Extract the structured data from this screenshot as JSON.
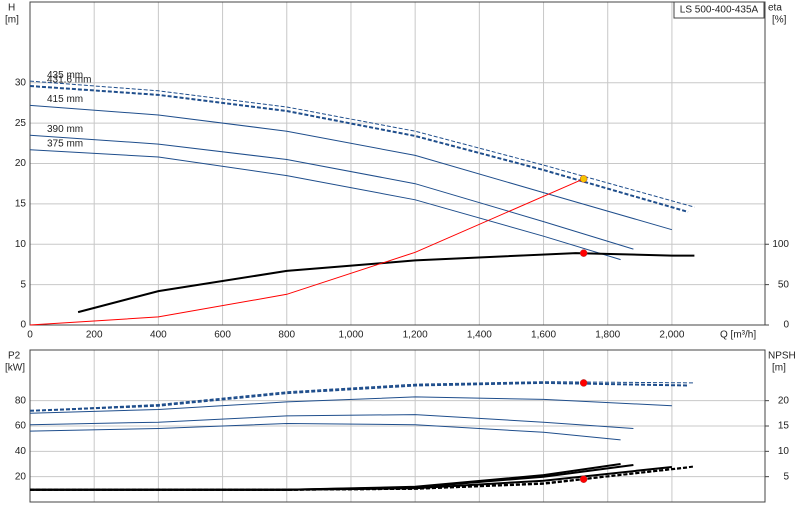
{
  "title": "LS 500-400-435A",
  "chart_data": [
    {
      "type": "line",
      "ylabel": "H",
      "yunit": "[m]",
      "y2label": "eta",
      "y2unit": "[%]",
      "xlabel": "Q [m³/h]",
      "xlim": [
        0,
        2290
      ],
      "ylim": [
        0,
        40
      ],
      "y2lim": [
        0,
        400
      ],
      "xticks": [
        0,
        200,
        400,
        600,
        800,
        {
          "value": 1000,
          "label": "1,000"
        },
        {
          "value": 1200,
          "label": "1,200"
        },
        {
          "value": 1400,
          "label": "1,400"
        },
        {
          "value": 1600,
          "label": "1,600"
        },
        {
          "value": 1800,
          "label": "1,800"
        },
        {
          "value": 2000,
          "label": "2,000"
        }
      ],
      "xtick_labels": true,
      "yticks": [
        0,
        5,
        10,
        15,
        20,
        25,
        30
      ],
      "y2ticks": [
        0,
        50,
        100
      ],
      "grid": true,
      "series": [
        {
          "name": "435 mm",
          "color": "#1f4e8c",
          "dashed": true,
          "bold": false,
          "x": [
            0,
            400,
            800,
            1200,
            1600,
            2070
          ],
          "values": [
            30.2,
            29.0,
            27.0,
            24.0,
            19.8,
            14.6
          ]
        },
        {
          "name": "431.6 mm",
          "color": "#1f4e8c",
          "dashed": true,
          "bold": true,
          "x": [
            0,
            400,
            800,
            1200,
            1600,
            2050
          ],
          "values": [
            29.6,
            28.5,
            26.5,
            23.4,
            19.2,
            14.0
          ]
        },
        {
          "name": "415 mm",
          "color": "#1f4e8c",
          "dashed": false,
          "bold": false,
          "x": [
            0,
            400,
            800,
            1200,
            1600,
            2000
          ],
          "values": [
            27.2,
            26.0,
            24.0,
            21.0,
            16.4,
            11.8
          ]
        },
        {
          "name": "390 mm",
          "color": "#1f4e8c",
          "dashed": false,
          "bold": false,
          "x": [
            0,
            400,
            800,
            1200,
            1600,
            1880
          ],
          "values": [
            23.5,
            22.4,
            20.5,
            17.5,
            12.8,
            9.4
          ]
        },
        {
          "name": "375 mm",
          "color": "#1f4e8c",
          "dashed": false,
          "bold": false,
          "x": [
            0,
            400,
            800,
            1200,
            1600,
            1840
          ],
          "values": [
            21.7,
            20.8,
            18.5,
            15.5,
            11.0,
            8.1
          ]
        },
        {
          "axis": "y2",
          "color": "#000000",
          "dashed": false,
          "bold": true,
          "x": [
            150,
            400,
            800,
            1200,
            1700,
            2000,
            2070
          ],
          "values": [
            16,
            42,
            67,
            80,
            89,
            86,
            86
          ]
        },
        {
          "color": "#ff0000",
          "dashed": false,
          "bold": false,
          "x": [
            0,
            400,
            800,
            1200,
            1725
          ],
          "values": [
            0,
            1,
            3.8,
            9,
            18.1
          ]
        }
      ],
      "markers": [
        {
          "x": 1725,
          "y": 18.1,
          "color": "#f5c400"
        },
        {
          "x": 1725,
          "y": 89,
          "color": "#ff0000",
          "axis": "y2"
        }
      ]
    },
    {
      "type": "line",
      "ylabel": "P2",
      "yunit": "[kW]",
      "y2label": "NPSH",
      "y2unit": "[m]",
      "xlim": [
        0,
        2290
      ],
      "ylim": [
        0,
        120
      ],
      "y2lim": [
        0,
        30
      ],
      "xticks": [
        0,
        200,
        400,
        600,
        800,
        1000,
        1200,
        1400,
        1600,
        1800,
        2000
      ],
      "xtick_labels": false,
      "yticks": [
        20,
        40,
        60,
        80
      ],
      "y2ticks": [
        5,
        10,
        15,
        20
      ],
      "grid": true,
      "series": [
        {
          "color": "#1f4e8c",
          "dashed": true,
          "bold": false,
          "x": [
            0,
            400,
            800,
            1200,
            1600,
            2070
          ],
          "values": [
            72,
            77,
            87,
            93,
            95,
            94
          ]
        },
        {
          "color": "#1f4e8c",
          "dashed": true,
          "bold": true,
          "x": [
            0,
            400,
            800,
            1200,
            1600,
            2050
          ],
          "values": [
            72,
            76,
            86,
            92,
            94,
            92
          ]
        },
        {
          "color": "#1f4e8c",
          "dashed": false,
          "bold": false,
          "x": [
            0,
            400,
            800,
            1200,
            1600,
            2000
          ],
          "values": [
            70,
            73,
            79,
            83,
            81,
            76
          ]
        },
        {
          "color": "#1f4e8c",
          "dashed": false,
          "bold": false,
          "x": [
            0,
            400,
            800,
            1200,
            1600,
            1880
          ],
          "values": [
            61,
            63,
            68,
            69,
            63,
            58
          ]
        },
        {
          "color": "#1f4e8c",
          "dashed": false,
          "bold": false,
          "x": [
            0,
            400,
            800,
            1200,
            1600,
            1840
          ],
          "values": [
            56,
            58,
            62,
            61,
            55,
            49
          ]
        },
        {
          "axis": "y2",
          "color": "#000000",
          "dashed": true,
          "bold": true,
          "x": [
            0,
            800,
            1200,
            1600,
            2070
          ],
          "values": [
            2.4,
            2.4,
            2.6,
            3.6,
            7.0
          ]
        },
        {
          "axis": "y2",
          "color": "#000000",
          "dashed": true,
          "bold": true,
          "x": [
            0,
            800,
            1200,
            1600,
            2050
          ],
          "values": [
            2.4,
            2.4,
            2.6,
            3.7,
            6.8
          ]
        },
        {
          "axis": "y2",
          "color": "#000000",
          "dashed": false,
          "bold": true,
          "x": [
            0,
            800,
            1200,
            1600,
            2000
          ],
          "values": [
            2.4,
            2.4,
            2.7,
            4.2,
            6.9
          ]
        },
        {
          "axis": "y2",
          "color": "#000000",
          "dashed": false,
          "bold": true,
          "x": [
            0,
            800,
            1200,
            1600,
            1880
          ],
          "values": [
            2.4,
            2.4,
            2.9,
            5.0,
            7.3
          ]
        },
        {
          "axis": "y2",
          "color": "#000000",
          "dashed": false,
          "bold": true,
          "x": [
            0,
            800,
            1200,
            1600,
            1840
          ],
          "values": [
            2.4,
            2.4,
            3.0,
            5.3,
            7.5
          ]
        }
      ],
      "markers": [
        {
          "x": 1725,
          "y": 94,
          "color": "#ff0000"
        },
        {
          "x": 1725,
          "y": 4.5,
          "color": "#ff0000",
          "axis": "y2"
        }
      ]
    }
  ]
}
